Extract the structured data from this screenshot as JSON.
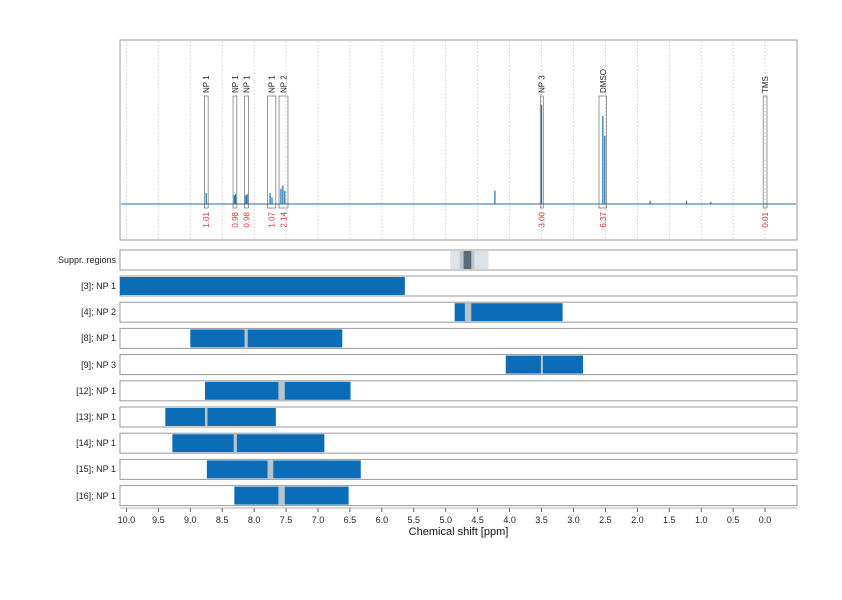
{
  "chart_data": {
    "type": "nmr_spectrum",
    "xlabel": "Chemical shift [ppm]",
    "x_ticks": [
      "10.0",
      "9.5",
      "9.0",
      "8.5",
      "8.0",
      "7.5",
      "7.0",
      "6.5",
      "6.0",
      "5.5",
      "5.0",
      "4.5",
      "4.0",
      "3.5",
      "3.0",
      "2.5",
      "2.0",
      "1.5",
      "1.0",
      "0.5",
      "0.0"
    ],
    "xlim": [
      10.1,
      -0.5
    ],
    "x_reversed": true,
    "peak_labels": [
      {
        "label": "NP 1",
        "ppm_range": [
          8.78,
          8.72
        ],
        "integral": "1.01"
      },
      {
        "label": "NP 1",
        "ppm_range": [
          8.33,
          8.27
        ],
        "integral": "0.98"
      },
      {
        "label": "NP 1",
        "ppm_range": [
          8.15,
          8.09
        ],
        "integral": "0.98"
      },
      {
        "label": "NP 1",
        "ppm_range": [
          7.79,
          7.66
        ],
        "integral": "1.07"
      },
      {
        "label": "NP 2",
        "ppm_range": [
          7.61,
          7.47
        ],
        "integral": "2.14"
      },
      {
        "label": "NP 3",
        "ppm_range": [
          3.52,
          3.48
        ],
        "integral": "3.00"
      },
      {
        "label": "DMSO",
        "ppm_range": [
          2.6,
          2.48
        ],
        "integral": "6.37"
      },
      {
        "label": "TMS",
        "ppm_range": [
          0.03,
          -0.03
        ],
        "integral": "0.01"
      }
    ],
    "peaks": [
      {
        "ppm": 8.75,
        "height": 0.1
      },
      {
        "ppm": 8.31,
        "height": 0.08
      },
      {
        "ppm": 8.29,
        "height": 0.09
      },
      {
        "ppm": 8.13,
        "height": 0.08
      },
      {
        "ppm": 8.11,
        "height": 0.09
      },
      {
        "ppm": 7.75,
        "height": 0.1
      },
      {
        "ppm": 7.72,
        "height": 0.06
      },
      {
        "ppm": 7.58,
        "height": 0.14
      },
      {
        "ppm": 7.55,
        "height": 0.17
      },
      {
        "ppm": 7.52,
        "height": 0.12
      },
      {
        "ppm": 4.23,
        "height": 0.12
      },
      {
        "ppm": 3.5,
        "height": 0.9
      },
      {
        "ppm": 2.54,
        "height": 0.8
      },
      {
        "ppm": 2.51,
        "height": 0.62
      },
      {
        "ppm": 1.8,
        "height": 0.03
      },
      {
        "ppm": 1.23,
        "height": 0.03
      },
      {
        "ppm": 0.85,
        "height": 0.02
      }
    ],
    "suppression_regions": {
      "label": "Suppr. regions",
      "light": [
        4.93,
        4.33
      ],
      "dark": [
        4.72,
        4.6
      ],
      "mid": [
        4.78,
        4.55
      ]
    },
    "rows": [
      {
        "label": "[3]; NP 1",
        "start": 10.1,
        "end": 5.64,
        "gaps": []
      },
      {
        "label": "[4]; NP 2",
        "start": 4.86,
        "end": 3.17,
        "gaps": [
          [
            4.7,
            4.6
          ]
        ]
      },
      {
        "label": "[8]; NP 1",
        "start": 9.0,
        "end": 6.62,
        "gaps": [
          [
            8.15,
            8.1
          ]
        ]
      },
      {
        "label": "[9]; NP 3",
        "start": 4.06,
        "end": 2.85,
        "gaps": [
          [
            3.51,
            3.48
          ]
        ]
      },
      {
        "label": "[12]; NP 1",
        "start": 8.77,
        "end": 6.49,
        "gaps": [
          [
            7.62,
            7.52
          ]
        ]
      },
      {
        "label": "[13]; NP 1",
        "start": 9.39,
        "end": 7.66,
        "gaps": [
          [
            8.77,
            8.73
          ]
        ]
      },
      {
        "label": "[14]; NP 1",
        "start": 9.28,
        "end": 6.9,
        "gaps": [
          [
            8.32,
            8.27
          ]
        ]
      },
      {
        "label": "[15]; NP 1",
        "start": 8.74,
        "end": 6.33,
        "gaps": [
          [
            7.79,
            7.7
          ]
        ]
      },
      {
        "label": "[16]; NP 1",
        "start": 8.31,
        "end": 6.52,
        "gaps": [
          [
            7.62,
            7.52
          ]
        ]
      }
    ],
    "colors": {
      "spectrum": "#1a6fb0",
      "bar": "#0b6db8",
      "gap": "#b8c4cc",
      "integral": "#d93030",
      "grid": "#bdbdbd",
      "frame": "#9a9a9a",
      "suppr_light": "#dde3e8",
      "suppr_mid": "#bcc6cf",
      "suppr_dark": "#5b6b7a"
    }
  }
}
